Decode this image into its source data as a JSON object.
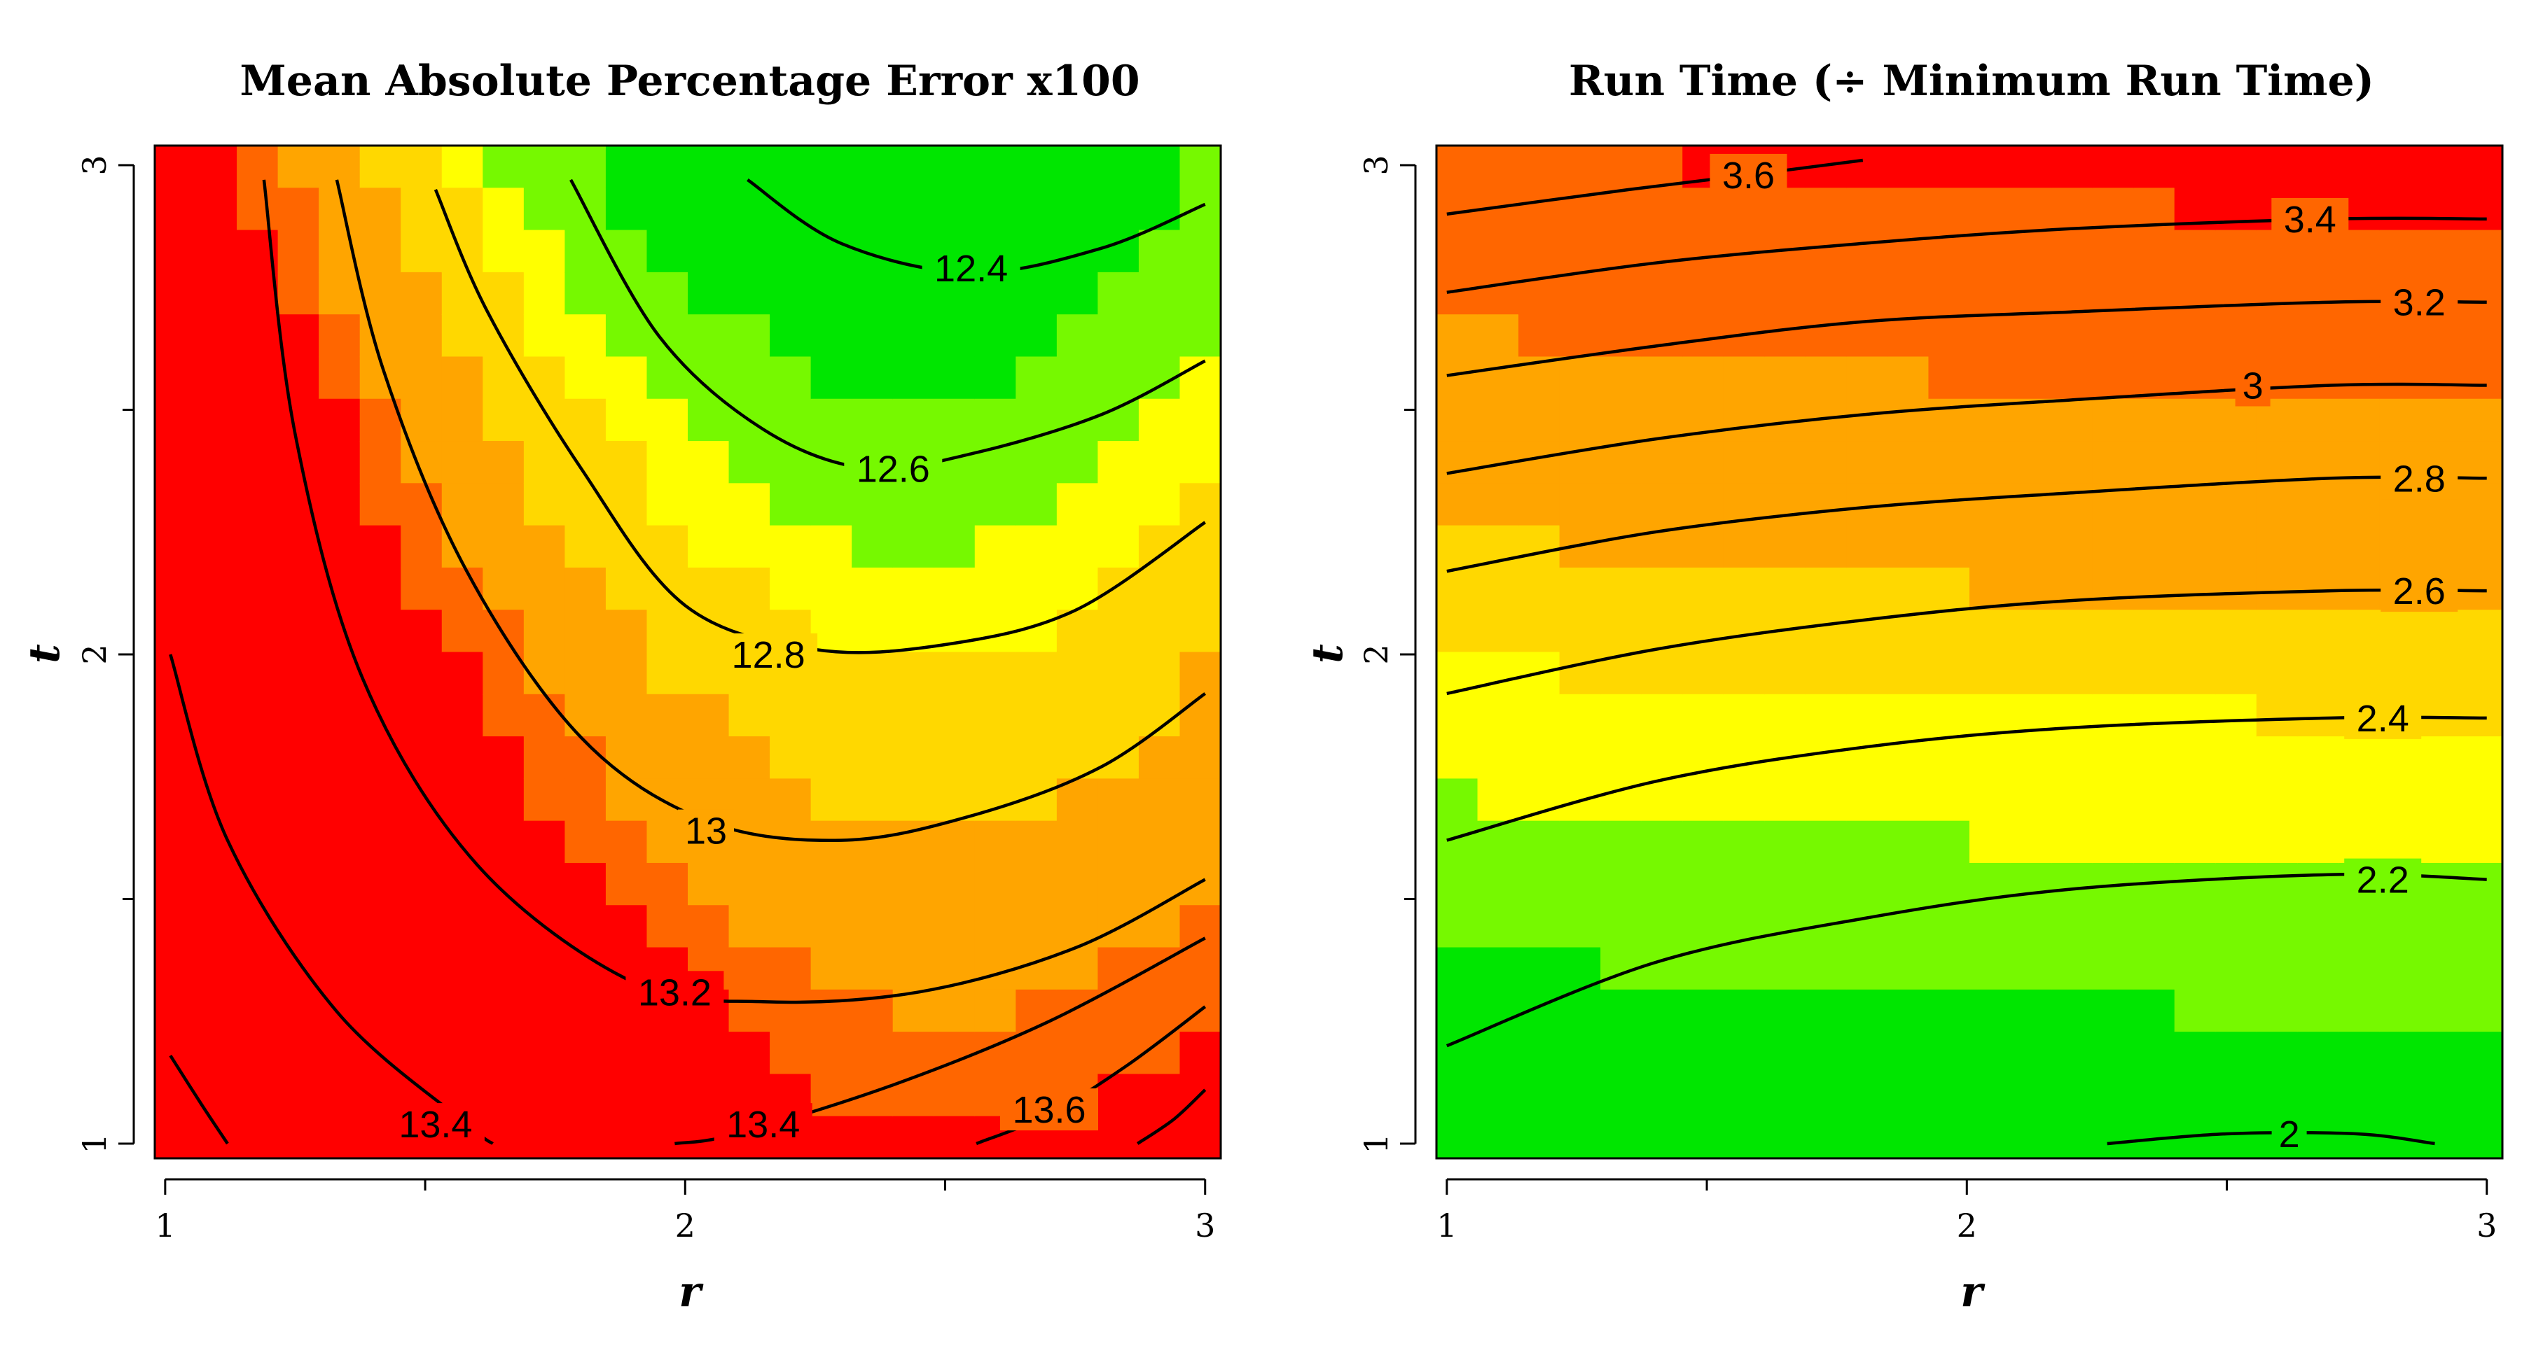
{
  "chart_data": [
    {
      "type": "heatmap",
      "title": "Mean Absolute Percentage Error x100",
      "xlabel": "r",
      "ylabel": "t",
      "xlim": [
        0.98,
        3.03
      ],
      "ylim": [
        0.97,
        3.04
      ],
      "x_ticks": [
        1,
        2,
        3
      ],
      "y_ticks": [
        1,
        2,
        3
      ],
      "contours": [
        {
          "level": "12.4",
          "points": [
            [
              2.12,
              2.97
            ],
            [
              2.3,
              2.84
            ],
            [
              2.55,
              2.78
            ],
            [
              2.8,
              2.83
            ],
            [
              3.0,
              2.92
            ]
          ],
          "label_at": [
            2.55,
            2.79
          ]
        },
        {
          "level": "12.6",
          "points": [
            [
              1.78,
              2.97
            ],
            [
              1.95,
              2.65
            ],
            [
              2.15,
              2.46
            ],
            [
              2.35,
              2.38
            ],
            [
              2.55,
              2.41
            ],
            [
              2.8,
              2.49
            ],
            [
              3.0,
              2.6
            ]
          ],
          "label_at": [
            2.4,
            2.38
          ]
        },
        {
          "level": "12.8",
          "points": [
            [
              1.52,
              2.95
            ],
            [
              1.62,
              2.7
            ],
            [
              1.8,
              2.38
            ],
            [
              2.0,
              2.1
            ],
            [
              2.25,
              2.01
            ],
            [
              2.5,
              2.02
            ],
            [
              2.75,
              2.09
            ],
            [
              3.0,
              2.27
            ]
          ],
          "label_at": [
            2.16,
            2.0
          ]
        },
        {
          "level": "13",
          "points": [
            [
              1.33,
              2.97
            ],
            [
              1.42,
              2.58
            ],
            [
              1.58,
              2.17
            ],
            [
              1.8,
              1.83
            ],
            [
              2.04,
              1.66
            ],
            [
              2.3,
              1.62
            ],
            [
              2.55,
              1.67
            ],
            [
              2.8,
              1.77
            ],
            [
              3.0,
              1.92
            ]
          ],
          "label_at": [
            2.04,
            1.64
          ]
        },
        {
          "level": "13.2",
          "points": [
            [
              1.19,
              2.97
            ],
            [
              1.25,
              2.45
            ],
            [
              1.38,
              1.95
            ],
            [
              1.6,
              1.57
            ],
            [
              1.9,
              1.33
            ],
            [
              2.15,
              1.29
            ],
            [
              2.45,
              1.31
            ],
            [
              2.75,
              1.4
            ],
            [
              3.0,
              1.54
            ]
          ],
          "label_at": [
            1.98,
            1.31
          ]
        },
        {
          "level": "13.4",
          "points": [
            [
              1.01,
              2.0
            ],
            [
              1.12,
              1.62
            ],
            [
              1.33,
              1.27
            ],
            [
              1.58,
              1.04
            ],
            [
              1.63,
              1.0
            ]
          ],
          "label_at": [
            1.52,
            1.04
          ]
        },
        {
          "level": "13.4",
          "points": [
            [
              1.98,
              1.0
            ],
            [
              2.1,
              1.02
            ],
            [
              2.4,
              1.12
            ],
            [
              2.7,
              1.25
            ],
            [
              3.0,
              1.42
            ]
          ],
          "label_at": [
            2.15,
            1.04
          ]
        },
        {
          "level": "13.6",
          "points": [
            [
              2.56,
              1.0
            ],
            [
              2.7,
              1.06
            ],
            [
              2.85,
              1.16
            ],
            [
              3.0,
              1.28
            ]
          ],
          "label_at": [
            2.7,
            1.07
          ]
        },
        {
          "level": "",
          "points": [
            [
              2.87,
              1.0
            ],
            [
              2.94,
              1.05
            ],
            [
              3.0,
              1.11
            ]
          ],
          "label_at": null
        },
        {
          "level": "",
          "points": [
            [
              1.01,
              1.18
            ],
            [
              1.07,
              1.08
            ],
            [
              1.12,
              1.0
            ]
          ],
          "label_at": null
        }
      ]
    },
    {
      "type": "heatmap",
      "title": "Run Time (÷ Minimum Run Time)",
      "xlabel": "r",
      "ylabel": "t",
      "xlim": [
        0.98,
        3.03
      ],
      "ylim": [
        0.97,
        3.04
      ],
      "x_ticks": [
        1,
        2,
        3
      ],
      "y_ticks": [
        1,
        2,
        3
      ],
      "contours": [
        {
          "level": "3.6",
          "points": [
            [
              1.0,
              2.9
            ],
            [
              1.35,
              2.95
            ],
            [
              1.58,
              2.98
            ],
            [
              1.8,
              3.01
            ]
          ],
          "label_at": [
            1.58,
            2.98
          ]
        },
        {
          "level": "3.4",
          "points": [
            [
              1.0,
              2.74
            ],
            [
              1.4,
              2.8
            ],
            [
              1.8,
              2.84
            ],
            [
              2.2,
              2.87
            ],
            [
              2.7,
              2.89
            ],
            [
              3.0,
              2.89
            ]
          ],
          "label_at": [
            2.66,
            2.89
          ]
        },
        {
          "level": "3.2",
          "points": [
            [
              1.0,
              2.57
            ],
            [
              1.4,
              2.63
            ],
            [
              1.8,
              2.68
            ],
            [
              2.2,
              2.7
            ],
            [
              2.7,
              2.72
            ],
            [
              3.0,
              2.72
            ]
          ],
          "label_at": [
            2.87,
            2.72
          ]
        },
        {
          "level": "3",
          "points": [
            [
              1.0,
              2.37
            ],
            [
              1.4,
              2.44
            ],
            [
              1.8,
              2.49
            ],
            [
              2.2,
              2.52
            ],
            [
              2.7,
              2.55
            ],
            [
              3.0,
              2.55
            ]
          ],
          "label_at": [
            2.55,
            2.55
          ]
        },
        {
          "level": "2.8",
          "points": [
            [
              1.0,
              2.17
            ],
            [
              1.4,
              2.25
            ],
            [
              1.8,
              2.3
            ],
            [
              2.2,
              2.33
            ],
            [
              2.7,
              2.36
            ],
            [
              3.0,
              2.36
            ]
          ],
          "label_at": [
            2.87,
            2.36
          ]
        },
        {
          "level": "2.6",
          "points": [
            [
              1.0,
              1.92
            ],
            [
              1.4,
              2.01
            ],
            [
              1.8,
              2.07
            ],
            [
              2.2,
              2.11
            ],
            [
              2.7,
              2.13
            ],
            [
              3.0,
              2.13
            ]
          ],
          "label_at": [
            2.87,
            2.13
          ]
        },
        {
          "level": "2.4",
          "points": [
            [
              1.0,
              1.62
            ],
            [
              1.4,
              1.74
            ],
            [
              1.8,
              1.81
            ],
            [
              2.2,
              1.85
            ],
            [
              2.7,
              1.87
            ],
            [
              3.0,
              1.87
            ]
          ],
          "label_at": [
            2.8,
            1.87
          ]
        },
        {
          "level": "2.2",
          "points": [
            [
              1.0,
              1.2
            ],
            [
              1.4,
              1.37
            ],
            [
              1.8,
              1.46
            ],
            [
              2.2,
              1.52
            ],
            [
              2.7,
              1.55
            ],
            [
              3.0,
              1.54
            ]
          ],
          "label_at": [
            2.8,
            1.54
          ]
        },
        {
          "level": "2",
          "points": [
            [
              2.27,
              1.0
            ],
            [
              2.5,
              1.02
            ],
            [
              2.75,
              1.02
            ],
            [
              2.9,
              1.0
            ]
          ],
          "label_at": [
            2.62,
            1.02
          ]
        }
      ]
    }
  ]
}
